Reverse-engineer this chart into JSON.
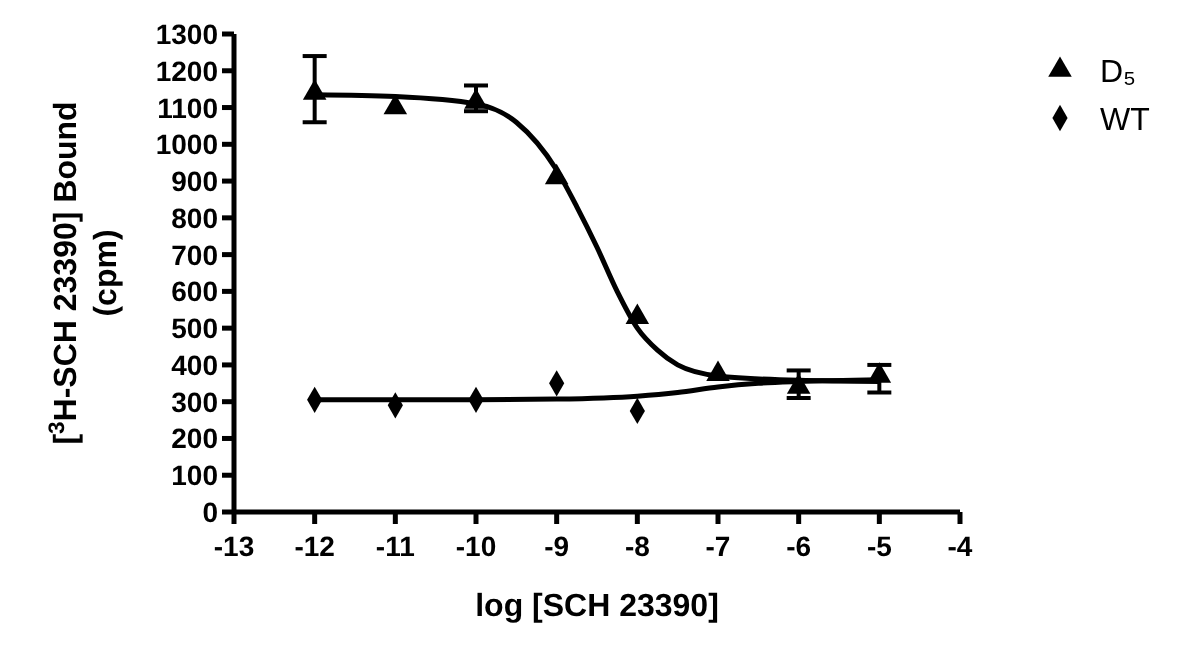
{
  "chart_data": {
    "type": "scatter",
    "xlabel": "log [SCH 23390]",
    "ylabel": "[$^{3}$H-SCH 23390] Bound (cpm)",
    "x": [
      -12,
      -11,
      -10,
      -9,
      -8,
      -7,
      -6,
      -5
    ],
    "series": [
      {
        "name": "D₅",
        "color": "#000000",
        "marker": "triangle",
        "values": [
          1140,
          1100,
          1115,
          910,
          530,
          375,
          340,
          370
        ],
        "errors": [
          [
            1060,
            1240
          ],
          null,
          [
            1090,
            1160
          ],
          null,
          null,
          null,
          [
            310,
            385
          ],
          [
            325,
            400
          ]
        ]
      },
      {
        "name": "WT",
        "color": "#000000",
        "marker": "diamond",
        "values": [
          305,
          290,
          305,
          350,
          275,
          null,
          null,
          null
        ]
      },
      {
        "type": "line",
        "color": "#000000",
        "marker": "none",
        "x": [
          -12,
          -11,
          -10,
          -9.5,
          -9,
          -8.75,
          -8.5,
          -8.25,
          -8,
          -7.75,
          -7.5,
          -7,
          -6,
          -5
        ],
        "values": [
          1135,
          1130,
          1110,
          1060,
          930,
          830,
          720,
          600,
          500,
          440,
          400,
          370,
          358,
          355
        ]
      },
      {
        "type": "line",
        "color": "#000000",
        "marker": "none",
        "x": [
          -12,
          -11,
          -10,
          -9,
          -8,
          -7.5,
          -7,
          -6.5,
          -6,
          -5
        ],
        "values": [
          305,
          305,
          305,
          307,
          315,
          325,
          340,
          350,
          355,
          360
        ]
      }
    ],
    "xlim": [
      -13,
      -4
    ],
    "xticks": [
      -13,
      -12,
      -11,
      -10,
      -9,
      -8,
      -7,
      -6,
      -5,
      -4
    ],
    "ylim": [
      0,
      1300
    ],
    "yticks": [
      0,
      100,
      200,
      300,
      400,
      500,
      600,
      700,
      800,
      900,
      1000,
      1100,
      1200,
      1300
    ],
    "grid": false,
    "legend": "top right"
  }
}
